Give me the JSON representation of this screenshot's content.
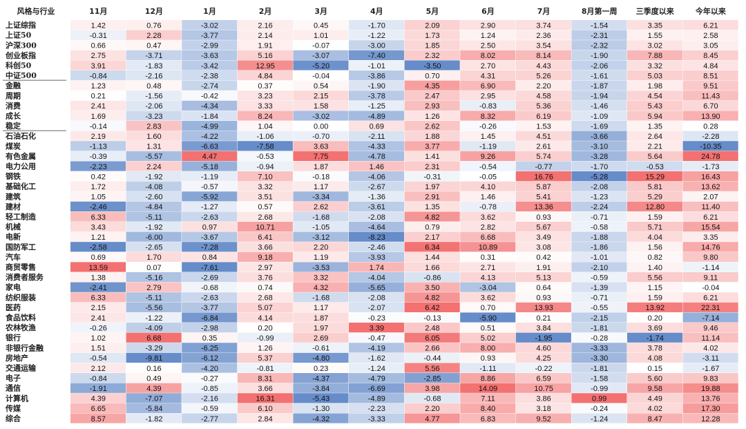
{
  "chart_data": {
    "type": "heatmap",
    "corner_label": "风格与行业",
    "columns": [
      "11月",
      "12月",
      "1月",
      "2月",
      "3月",
      "4月",
      "5月",
      "6月",
      "7月",
      "8月第一周",
      "三季度以来",
      "今年以来"
    ],
    "colors": {
      "negative": "#5e86c6",
      "positive": "#f26a6a",
      "neutral": "#ffffff"
    },
    "rows": [
      {
        "name": "上证综指",
        "values": [
          1.42,
          0.76,
          -3.02,
          2.16,
          0.45,
          -1.7,
          2.09,
          2.9,
          3.74,
          -1.54,
          3.35,
          6.21
        ]
      },
      {
        "name": "上证50",
        "values": [
          -0.31,
          2.28,
          -3.77,
          2.14,
          1.01,
          -1.22,
          1.73,
          1.24,
          2.36,
          -2.31,
          1.55,
          2.58
        ]
      },
      {
        "name": "沪深300",
        "values": [
          0.66,
          0.47,
          -2.99,
          1.91,
          -0.07,
          -3.0,
          1.85,
          2.5,
          3.54,
          -2.32,
          3.02,
          3.05
        ]
      },
      {
        "name": "创业板指",
        "values": [
          2.75,
          -3.71,
          -3.63,
          5.16,
          -3.07,
          -7.4,
          2.32,
          8.02,
          8.14,
          -1.9,
          7.88,
          8.45
        ]
      },
      {
        "name": "科创50",
        "values": [
          3.91,
          -1.83,
          -3.42,
          12.95,
          -5.2,
          -1.01,
          -3.5,
          2.7,
          4.43,
          -2.06,
          3.32,
          4.84
        ]
      },
      {
        "name": "中证500",
        "values": [
          -0.84,
          -2.16,
          -2.38,
          4.84,
          -0.04,
          -3.86,
          0.7,
          4.31,
          5.26,
          -1.61,
          5.03,
          8.51
        ]
      },
      {
        "name": "金融",
        "values": [
          1.23,
          0.48,
          -2.74,
          0.37,
          0.54,
          -1.9,
          4.35,
          6.9,
          2.2,
          -1.87,
          1.98,
          9.51
        ]
      },
      {
        "name": "周期",
        "values": [
          0.21,
          -1.56,
          -0.42,
          3.23,
          2.15,
          -3.78,
          2.47,
          2.95,
          4.58,
          -1.94,
          4.54,
          11.43
        ]
      },
      {
        "name": "消费",
        "values": [
          2.41,
          -2.06,
          -4.34,
          3.33,
          1.58,
          -1.25,
          2.93,
          -0.83,
          5.36,
          -1.46,
          5.43,
          6.7
        ]
      },
      {
        "name": "成长",
        "values": [
          1.69,
          -3.23,
          -1.84,
          8.24,
          -3.02,
          -4.89,
          1.26,
          8.32,
          6.19,
          -1.09,
          5.94,
          13.9
        ]
      },
      {
        "name": "稳定",
        "values": [
          -0.14,
          2.83,
          -4.99,
          1.04,
          0.0,
          0.69,
          2.62,
          -0.26,
          1.53,
          -1.69,
          1.35,
          0.28
        ]
      },
      {
        "name": "石油石化",
        "values": [
          2.19,
          1.6,
          -4.22,
          -1.06,
          -0.7,
          -2.11,
          1.88,
          1.45,
          4.51,
          -3.66,
          2.64,
          -2.28
        ]
      },
      {
        "name": "煤炭",
        "values": [
          -1.13,
          1.31,
          -6.63,
          -7.58,
          3.63,
          -4.33,
          3.77,
          -1.19,
          2.61,
          -3.1,
          2.21,
          -10.35
        ]
      },
      {
        "name": "有色金属",
        "values": [
          -0.39,
          -5.57,
          4.47,
          -0.53,
          7.75,
          -4.78,
          1.41,
          9.26,
          5.74,
          -3.28,
          5.64,
          24.78
        ]
      },
      {
        "name": "电力公用",
        "values": [
          -2.23,
          2.24,
          -5.18,
          -0.94,
          1.87,
          1.46,
          2.31,
          -0.54,
          -0.77,
          -1.7,
          -0.53,
          -1.73
        ]
      },
      {
        "name": "钢铁",
        "values": [
          0.42,
          -1.92,
          -1.19,
          7.1,
          -0.18,
          -4.06,
          -0.31,
          -0.05,
          16.76,
          -5.28,
          15.29,
          16.43
        ]
      },
      {
        "name": "基础化工",
        "values": [
          1.72,
          -4.08,
          -0.57,
          3.32,
          1.17,
          -2.67,
          1.97,
          4.1,
          5.87,
          -2.08,
          5.81,
          13.62
        ]
      },
      {
        "name": "建筑",
        "values": [
          1.05,
          -2.6,
          -5.92,
          3.51,
          -3.34,
          -1.36,
          2.91,
          1.46,
          5.41,
          -1.23,
          5.29,
          2.07
        ]
      },
      {
        "name": "建材",
        "values": [
          -2.46,
          -4.84,
          -1.27,
          0.57,
          2.62,
          -3.61,
          1.35,
          -0.78,
          13.36,
          -2.24,
          12.8,
          11.4
        ]
      },
      {
        "name": "轻工制造",
        "values": [
          6.33,
          -5.11,
          -2.63,
          2.68,
          -1.68,
          -2.08,
          4.82,
          3.62,
          0.93,
          -0.71,
          1.59,
          6.21
        ]
      },
      {
        "name": "机械",
        "values": [
          3.43,
          -1.92,
          0.97,
          10.71,
          -1.05,
          -4.64,
          0.79,
          2.82,
          5.67,
          -0.58,
          5.71,
          15.54
        ]
      },
      {
        "name": "电新",
        "values": [
          1.21,
          -6.0,
          -3.67,
          6.41,
          -3.12,
          -8.23,
          2.17,
          6.68,
          3.49,
          -1.88,
          4.04,
          3.35
        ]
      },
      {
        "name": "国防军工",
        "values": [
          -2.58,
          -2.65,
          -7.28,
          3.66,
          2.2,
          -2.46,
          6.34,
          10.89,
          3.08,
          -1.86,
          1.56,
          14.76
        ]
      },
      {
        "name": "汽车",
        "values": [
          0.69,
          1.7,
          0.84,
          9.18,
          1.19,
          -3.93,
          1.44,
          0.31,
          0.42,
          -1.01,
          0.82,
          9.8
        ]
      },
      {
        "name": "商贸零售",
        "values": [
          13.59,
          0.07,
          -7.61,
          2.97,
          -3.53,
          1.74,
          1.66,
          2.71,
          1.91,
          -2.1,
          1.4,
          -1.14
        ]
      },
      {
        "name": "消费者服务",
        "values": [
          1.38,
          -5.16,
          -2.69,
          3.76,
          3.32,
          -4.04,
          -0.86,
          4.13,
          5.13,
          -0.59,
          5.56,
          9.11
        ]
      },
      {
        "name": "家电",
        "values": [
          -2.41,
          2.79,
          -0.68,
          0.74,
          4.32,
          -5.65,
          3.5,
          -3.04,
          0.64,
          -1.39,
          1.15,
          -0.04
        ]
      },
      {
        "name": "纺织服装",
        "values": [
          6.33,
          -5.11,
          -2.63,
          2.68,
          -1.68,
          -2.08,
          4.82,
          3.62,
          0.93,
          -0.71,
          1.59,
          6.21
        ]
      },
      {
        "name": "医药",
        "values": [
          2.15,
          -5.56,
          -3.77,
          5.07,
          1.17,
          -2.07,
          6.42,
          0.7,
          13.93,
          -0.55,
          13.92,
          22.31
        ]
      },
      {
        "name": "食品饮料",
        "values": [
          2.41,
          -1.22,
          -6.84,
          4.14,
          1.87,
          -0.23,
          -0.13,
          -5.9,
          0.21,
          -2.15,
          0.2,
          -7.14
        ]
      },
      {
        "name": "农林牧渔",
        "values": [
          -0.26,
          -4.09,
          -2.98,
          0.2,
          1.97,
          3.39,
          2.48,
          0.51,
          3.84,
          -1.81,
          3.69,
          9.46
        ]
      },
      {
        "name": "银行",
        "values": [
          1.02,
          6.68,
          0.35,
          -0.99,
          2.69,
          -0.47,
          6.05,
          5.02,
          -1.95,
          -0.28,
          -1.74,
          11.14
        ]
      },
      {
        "name": "非银行金融",
        "values": [
          1.51,
          -3.29,
          -6.25,
          1.26,
          -0.61,
          -4.19,
          2.66,
          8.0,
          4.6,
          -3.33,
          3.78,
          4.02
        ]
      },
      {
        "name": "房地产",
        "values": [
          -0.54,
          -9.81,
          -6.12,
          5.37,
          -4.8,
          -1.62,
          -0.44,
          0.93,
          4.25,
          -3.3,
          4.08,
          -3.11
        ]
      },
      {
        "name": "交通运输",
        "values": [
          2.12,
          0.16,
          -4.2,
          -0.81,
          0.23,
          -1.24,
          5.56,
          -1.11,
          -0.22,
          -1.81,
          0.15,
          -1.67
        ]
      },
      {
        "name": "电子",
        "values": [
          -0.84,
          0.49,
          -0.27,
          8.31,
          -4.37,
          -4.79,
          -2.85,
          8.86,
          6.59,
          -1.58,
          5.6,
          9.83
        ]
      },
      {
        "name": "通信",
        "values": [
          -1.91,
          4.39,
          -0.85,
          3.66,
          -3.84,
          -6.69,
          3.98,
          14.09,
          10.75,
          -0.99,
          9.58,
          19.88
        ]
      },
      {
        "name": "计算机",
        "values": [
          4.39,
          -7.07,
          -2.16,
          16.31,
          -5.43,
          -4.89,
          -0.68,
          7.11,
          3.86,
          0.99,
          4.49,
          13.76
        ]
      },
      {
        "name": "传媒",
        "values": [
          6.65,
          -5.84,
          -0.59,
          6.1,
          -1.3,
          -2.23,
          2.2,
          8.4,
          3.18,
          -0.24,
          4.02,
          17.3
        ]
      },
      {
        "name": "综合",
        "values": [
          8.57,
          -1.82,
          -2.77,
          2.84,
          -4.32,
          -3.33,
          4.77,
          6.83,
          9.52,
          -1.24,
          8.47,
          12.28
        ]
      }
    ]
  }
}
